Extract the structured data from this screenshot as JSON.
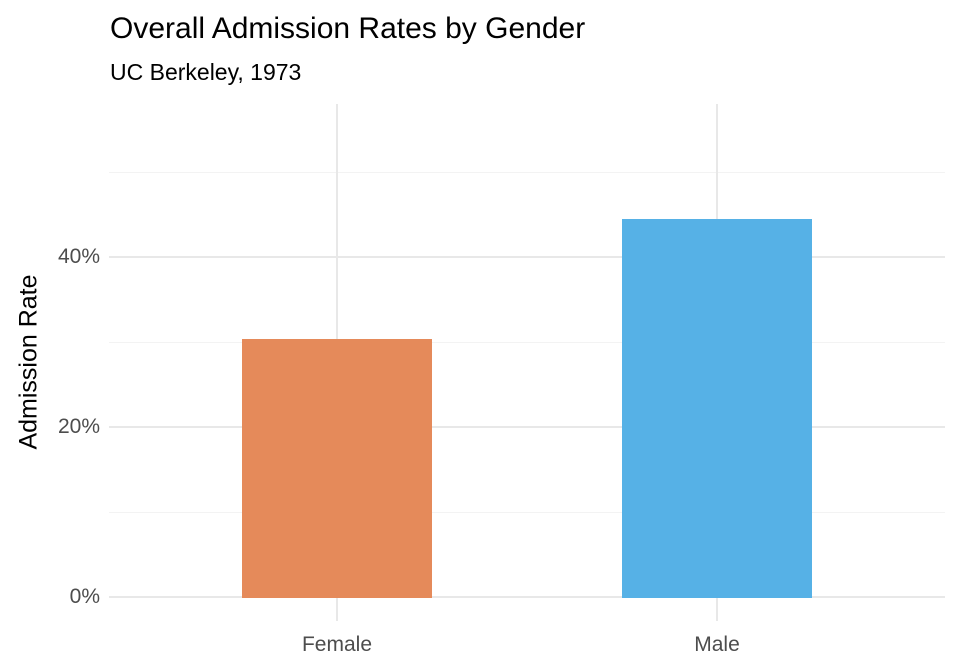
{
  "chart_data": {
    "type": "bar",
    "title": "Overall Admission Rates by Gender",
    "subtitle": "UC Berkeley, 1973",
    "xlabel": "",
    "ylabel": "Admission Rate",
    "categories": [
      "Female",
      "Male"
    ],
    "values": [
      30.4,
      44.5
    ],
    "value_unit": "percent",
    "ylim": [
      0,
      58
    ],
    "yticks": [
      {
        "value": 0,
        "label": "0%"
      },
      {
        "value": 20,
        "label": "20%"
      },
      {
        "value": 40,
        "label": "40%"
      }
    ],
    "yticks_minor": [
      10,
      30,
      50
    ],
    "bar_colors": [
      "#E58A5A",
      "#56B1E6"
    ],
    "grid": "on",
    "legend": "none",
    "colors": {
      "background": "#FFFFFF",
      "grid_major": "#E8E8E8",
      "grid_minor": "#F3F3F3",
      "axis_text": "#4D4D4D",
      "title_text": "#000000"
    }
  }
}
